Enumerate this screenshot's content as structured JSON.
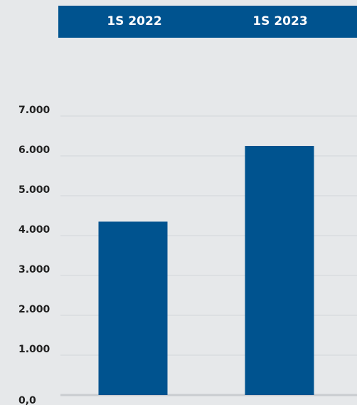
{
  "chart_data": {
    "type": "bar",
    "categories": [
      "1S 2022",
      "1S 2023"
    ],
    "values": [
      4350,
      6250
    ],
    "ylim": [
      0,
      7000
    ],
    "yticks": [
      0,
      1000,
      2000,
      3000,
      4000,
      5000,
      6000,
      7000
    ],
    "ytick_labels": [
      "0,0",
      "1.000",
      "2.000",
      "3.000",
      "4.000",
      "5.000",
      "6.000",
      "7.000"
    ],
    "grid": true,
    "bar_color": "#00538f",
    "header_color": "#00538f",
    "background_color": "#e6e8ea",
    "title": "",
    "xlabel": "",
    "ylabel": ""
  }
}
